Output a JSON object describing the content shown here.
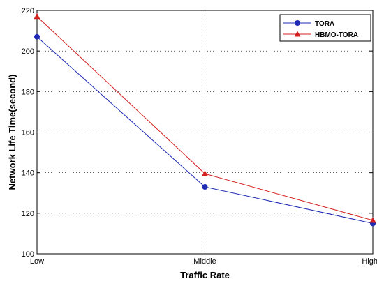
{
  "chart_data": {
    "type": "line",
    "categories": [
      "Low",
      "Middle",
      "High"
    ],
    "xlabel": "Traffic Rate",
    "ylabel": "Network Life Time(second)",
    "ylim": [
      100,
      220
    ],
    "yticks": [
      100,
      120,
      140,
      160,
      180,
      200,
      220
    ],
    "grid": true,
    "legend_position": "top-right",
    "series": [
      {
        "name": "TORA",
        "values": [
          207,
          133,
          115
        ],
        "color": "#1f2bb5",
        "marker": "circle"
      },
      {
        "name": "HBMO-TORA",
        "values": [
          217,
          139.5,
          116.5
        ],
        "color": "#d42020",
        "marker": "triangle"
      }
    ]
  }
}
